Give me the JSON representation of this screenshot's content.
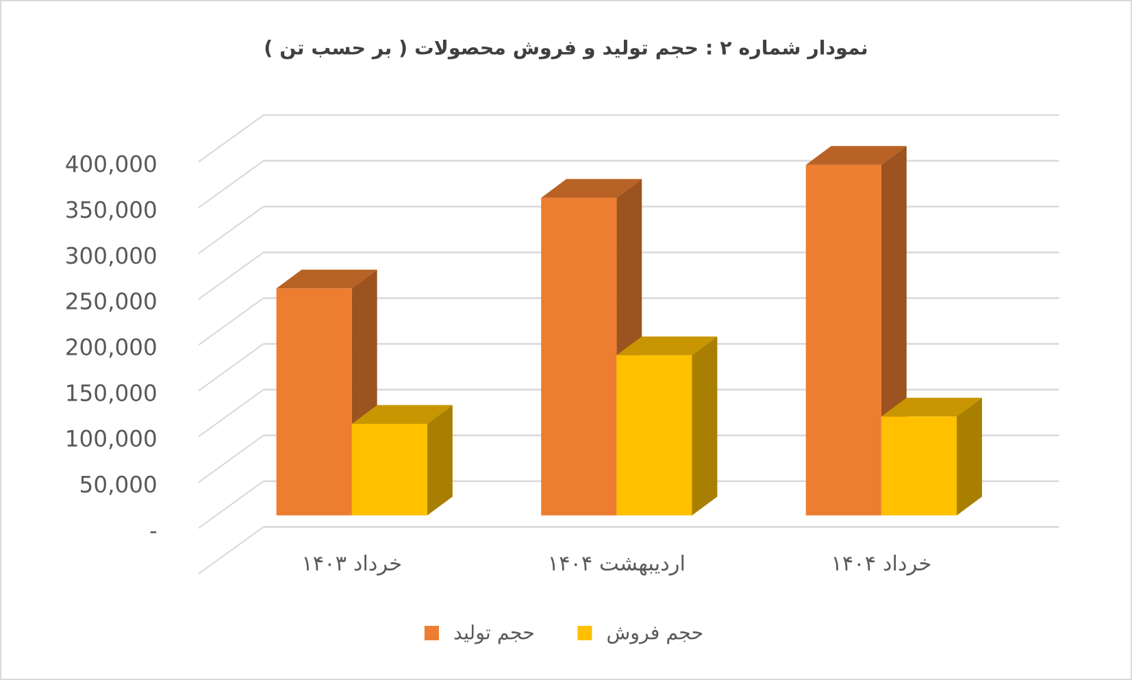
{
  "chart_data": {
    "type": "bar3d",
    "title": "نمودار شماره ۲ : حجم  تولید و فروش محصولات ( بر حسب تن )",
    "categories": [
      "خرداد ۱۴۰۳",
      "اردیبهشت ۱۴۰۴",
      "خرداد ۱۴۰۴"
    ],
    "series": [
      {
        "name": "حجم تولید",
        "color": "#ED7D31",
        "values": [
          248000,
          347000,
          383000
        ]
      },
      {
        "name": "حجم فروش",
        "color": "#FFC000",
        "values": [
          100000,
          175000,
          108000
        ]
      }
    ],
    "ylim": [
      0,
      450000
    ],
    "yticks": [
      {
        "value": 0,
        "label": "-"
      },
      {
        "value": 50000,
        "label": "50,000"
      },
      {
        "value": 100000,
        "label": "100,000"
      },
      {
        "value": 150000,
        "label": "150,000"
      },
      {
        "value": 200000,
        "label": "200,000"
      },
      {
        "value": 250000,
        "label": "250,000"
      },
      {
        "value": 300000,
        "label": "300,000"
      },
      {
        "value": 350000,
        "label": "350,000"
      },
      {
        "value": 400000,
        "label": "400,000"
      }
    ],
    "grid": true,
    "legend": "bottom"
  }
}
